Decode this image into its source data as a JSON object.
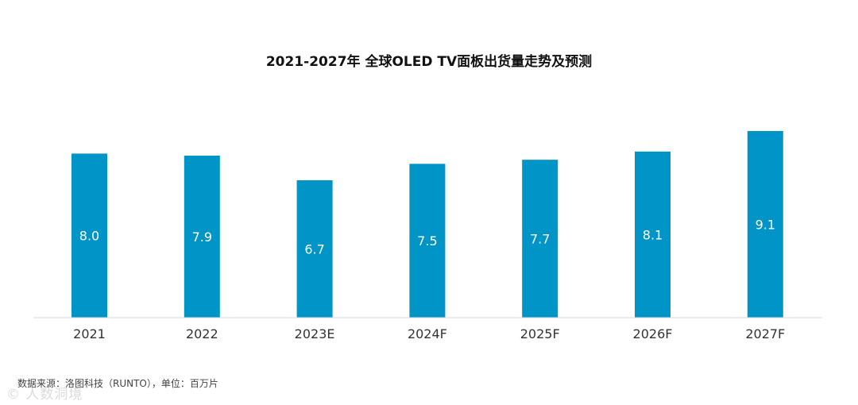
{
  "chart_data": {
    "type": "bar",
    "title": "2021-2027年 全球OLED TV面板出货量走势及预测",
    "categories": [
      "2021",
      "2022",
      "2023E",
      "2024F",
      "2025F",
      "2026F",
      "2027F"
    ],
    "values": [
      8.0,
      7.9,
      6.7,
      7.5,
      7.7,
      8.1,
      9.1
    ],
    "value_labels": [
      "8.0",
      "7.9",
      "6.7",
      "7.5",
      "7.7",
      "8.1",
      "9.1"
    ],
    "ylim": [
      0,
      9.1
    ],
    "grid": false,
    "legend": "none",
    "bar_color": "#0094C7",
    "axis_color": "#D9D9D9"
  },
  "source_note": "数据来源：洛图科技（RUNTO），单位：百万片",
  "watermark": "© 人数洞境"
}
